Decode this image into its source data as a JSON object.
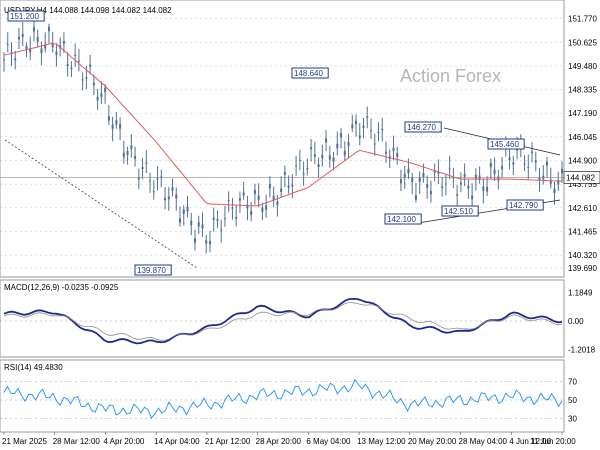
{
  "colors": {
    "candle": "#4f7096",
    "ma": "#e35b5b",
    "macd_main": "#1f2a8a",
    "macd_signal": "#8e8e8e",
    "rsi": "#1e90ff",
    "grid": "#9a9a9a",
    "label": "#1f3a8a",
    "watermark": "#b6b6b6"
  },
  "chart_data": [
    {
      "type": "line",
      "title": "USDJPY,H4 144.088 144.098 144.082 144.082",
      "series": [
        {
          "name": "USDJPY H4 close",
          "x": [
            "21 Mar 2025",
            "28 Mar 12:00",
            "4 Apr 20:00",
            "14 Apr 04:00",
            "21 Apr 12:00",
            "28 Apr 20:00",
            "6 May 04:00",
            "13 May 12:00",
            "20 May 20:00",
            "28 May 04:00",
            "4 Jun 12:00",
            "11 Jun 20:00"
          ],
          "values": [
            149.8,
            151.0,
            147.5,
            143.5,
            141.5,
            143.0,
            144.5,
            146.7,
            144.2,
            143.5,
            145.0,
            144.082
          ]
        },
        {
          "name": "MA",
          "values": [
            150.0,
            150.6,
            148.5,
            145.8,
            142.8,
            142.7,
            143.6,
            145.4,
            144.8,
            144.0,
            144.0,
            143.9
          ]
        }
      ],
      "ylim": [
        139.6,
        151.8
      ],
      "y_ticks": [
        "151.770",
        "150.625",
        "149.480",
        "148.335",
        "147.190",
        "146.045",
        "144.900",
        "143.755",
        "142.610",
        "141.465",
        "140.320",
        "139.690"
      ],
      "current_price": "144.082",
      "labeled_points": [
        {
          "label": "151.200"
        },
        {
          "label": "148.640"
        },
        {
          "label": "146.270"
        },
        {
          "label": "145.460"
        },
        {
          "label": "142.100"
        },
        {
          "label": "142.510"
        },
        {
          "label": "142.790"
        },
        {
          "label": "139.870"
        }
      ],
      "watermark": "Action Forex"
    },
    {
      "type": "line",
      "title": "MACD(12,26,9) -0.0235 -0.0925",
      "y_ticks": [
        "1.1849",
        "0.00",
        "-1.2018"
      ],
      "series": [
        {
          "name": "MACD",
          "values": [
            0.3,
            0.4,
            -0.8,
            -0.9,
            -0.3,
            0.6,
            0.2,
            1.0,
            -0.2,
            -0.5,
            0.3,
            0.0
          ]
        },
        {
          "name": "Signal",
          "values": [
            0.2,
            0.3,
            -0.5,
            -0.8,
            -0.4,
            0.3,
            0.3,
            0.8,
            0.1,
            -0.4,
            0.2,
            -0.1
          ]
        }
      ]
    },
    {
      "type": "line",
      "title": "RSI(14) 49.4830",
      "y_ticks": [
        "70",
        "50",
        "30"
      ],
      "series": [
        {
          "name": "RSI",
          "values": [
            58,
            53,
            40,
            38,
            45,
            55,
            60,
            65,
            45,
            50,
            54,
            49.48
          ]
        }
      ]
    }
  ]
}
